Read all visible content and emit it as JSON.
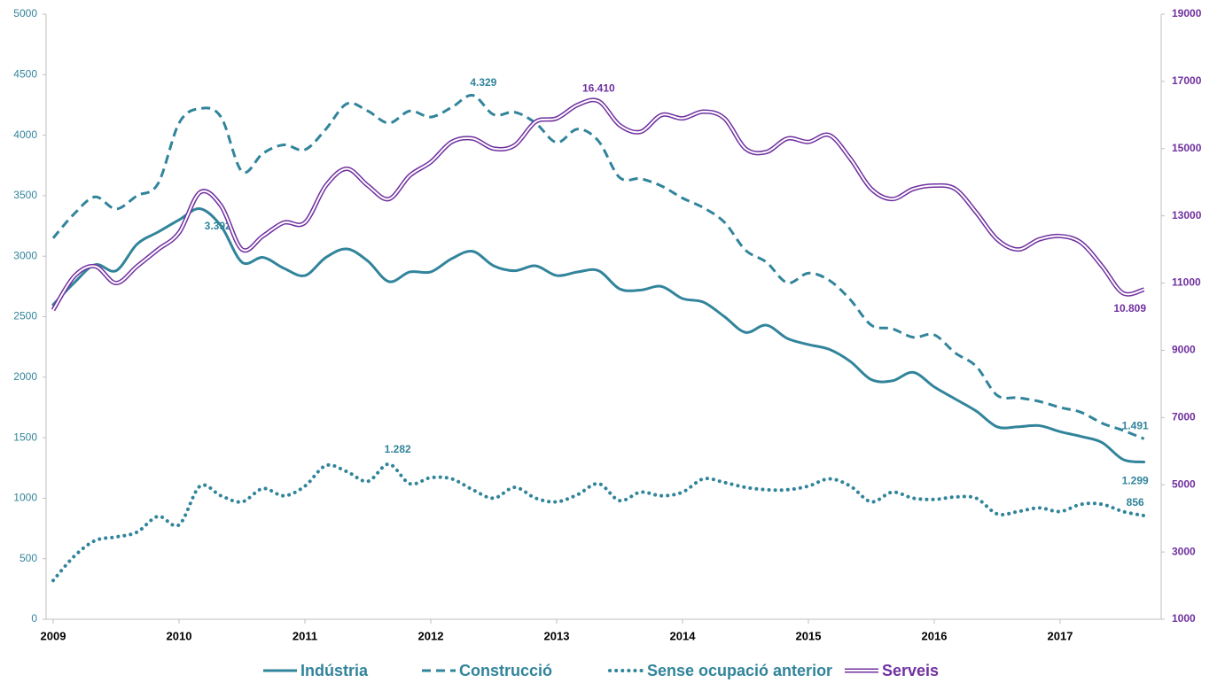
{
  "chart_data": {
    "type": "line",
    "categories": [
      "2009",
      null,
      null,
      null,
      null,
      null,
      "2010",
      null,
      null,
      null,
      null,
      null,
      "2011",
      null,
      null,
      null,
      null,
      null,
      "2012",
      null,
      null,
      null,
      null,
      null,
      "2013",
      null,
      null,
      null,
      null,
      null,
      "2014",
      null,
      null,
      null,
      null,
      null,
      "2015",
      null,
      null,
      null,
      null,
      null,
      "2016",
      null,
      null,
      null,
      null,
      null,
      "2017",
      null,
      null,
      null,
      null
    ],
    "ylim": [
      0,
      5000
    ],
    "yticks": [
      0,
      500,
      1000,
      1500,
      2000,
      2500,
      3000,
      3500,
      4000,
      4500,
      5000
    ],
    "y2lim": [
      1000,
      19000
    ],
    "y2ticks": [
      1000,
      3000,
      5000,
      7000,
      9000,
      11000,
      13000,
      15000,
      17000,
      19000
    ],
    "grid": false,
    "legend": "bottom",
    "series": [
      {
        "name": "Indústria",
        "color": "#31849b",
        "dash": "solid",
        "values": [
          2600,
          2780,
          2930,
          2880,
          3100,
          3200,
          3300,
          3392,
          3250,
          2950,
          2990,
          2900,
          2840,
          2990,
          3060,
          2960,
          2790,
          2870,
          2870,
          2980,
          3040,
          2920,
          2880,
          2920,
          2840,
          2870,
          2880,
          2730,
          2720,
          2750,
          2650,
          2620,
          2500,
          2370,
          2430,
          2320,
          2270,
          2230,
          2130,
          1980,
          1970,
          2040,
          1920,
          1820,
          1720,
          1590,
          1590,
          1600,
          1550,
          1510,
          1460,
          1320,
          1299
        ],
        "value_labels": [
          null,
          null,
          null,
          null,
          null,
          null,
          null,
          "3.392",
          null,
          null,
          null,
          null,
          null,
          null,
          null,
          null,
          null,
          null,
          null,
          null,
          null,
          null,
          null,
          null,
          null,
          null,
          null,
          null,
          null,
          null,
          null,
          null,
          null,
          null,
          null,
          null,
          null,
          null,
          null,
          null,
          null,
          null,
          null,
          null,
          null,
          null,
          null,
          null,
          null,
          null,
          null,
          null,
          "1.299"
        ]
      },
      {
        "name": "Construcció",
        "color": "#31849b",
        "dash": "dashed",
        "values": [
          3150,
          3350,
          3490,
          3390,
          3500,
          3600,
          4100,
          4220,
          4150,
          3700,
          3850,
          3920,
          3880,
          4050,
          4260,
          4200,
          4100,
          4200,
          4150,
          4230,
          4329,
          4170,
          4190,
          4100,
          3940,
          4050,
          3950,
          3650,
          3640,
          3580,
          3480,
          3400,
          3280,
          3050,
          2950,
          2780,
          2860,
          2800,
          2640,
          2430,
          2400,
          2330,
          2350,
          2200,
          2090,
          1850,
          1830,
          1800,
          1750,
          1710,
          1620,
          1560,
          1491
        ],
        "value_labels": [
          null,
          null,
          null,
          null,
          null,
          null,
          null,
          null,
          null,
          null,
          null,
          null,
          null,
          null,
          null,
          null,
          null,
          null,
          null,
          null,
          "4.329",
          null,
          null,
          null,
          null,
          null,
          null,
          null,
          null,
          null,
          null,
          null,
          null,
          null,
          null,
          null,
          null,
          null,
          null,
          null,
          null,
          null,
          null,
          null,
          null,
          null,
          null,
          null,
          null,
          null,
          null,
          null,
          "1.491"
        ]
      },
      {
        "name": "Sense ocupació  anterior",
        "color": "#31849b",
        "dash": "dotted",
        "values": [
          320,
          520,
          650,
          680,
          720,
          850,
          780,
          1100,
          1020,
          970,
          1080,
          1020,
          1100,
          1270,
          1220,
          1140,
          1282,
          1120,
          1170,
          1160,
          1070,
          1000,
          1090,
          1000,
          970,
          1030,
          1120,
          980,
          1050,
          1020,
          1050,
          1160,
          1130,
          1090,
          1070,
          1070,
          1100,
          1160,
          1100,
          970,
          1050,
          1000,
          990,
          1010,
          1000,
          870,
          890,
          920,
          890,
          950,
          950,
          890,
          856
        ],
        "value_labels": [
          null,
          null,
          null,
          null,
          null,
          null,
          null,
          null,
          null,
          null,
          null,
          null,
          null,
          null,
          null,
          null,
          "1.282",
          null,
          null,
          null,
          null,
          null,
          null,
          null,
          null,
          null,
          null,
          null,
          null,
          null,
          null,
          null,
          null,
          null,
          null,
          null,
          null,
          null,
          null,
          null,
          null,
          null,
          null,
          null,
          null,
          null,
          null,
          null,
          null,
          null,
          null,
          null,
          "856"
        ]
      },
      {
        "name": "Serveis",
        "color": "#7030a0",
        "dash": "double",
        "axis": "y2",
        "values": [
          10200,
          11200,
          11500,
          11000,
          11500,
          12000,
          12500,
          13700,
          13300,
          12000,
          12400,
          12800,
          12800,
          13900,
          14400,
          13900,
          13500,
          14200,
          14600,
          15200,
          15300,
          15000,
          15100,
          15800,
          15900,
          16300,
          16410,
          15700,
          15500,
          16000,
          15900,
          16100,
          15900,
          15000,
          14900,
          15300,
          15200,
          15400,
          14700,
          13800,
          13500,
          13800,
          13900,
          13800,
          13100,
          12300,
          12000,
          12300,
          12400,
          12200,
          11500,
          10700,
          10809
        ],
        "value_labels": [
          null,
          null,
          null,
          null,
          null,
          null,
          null,
          null,
          null,
          null,
          null,
          null,
          null,
          null,
          null,
          null,
          null,
          null,
          null,
          null,
          null,
          null,
          null,
          null,
          null,
          null,
          "16.410",
          null,
          null,
          null,
          null,
          null,
          null,
          null,
          null,
          null,
          null,
          null,
          null,
          null,
          null,
          null,
          null,
          null,
          null,
          null,
          null,
          null,
          null,
          null,
          null,
          null,
          "10.809"
        ]
      }
    ]
  }
}
